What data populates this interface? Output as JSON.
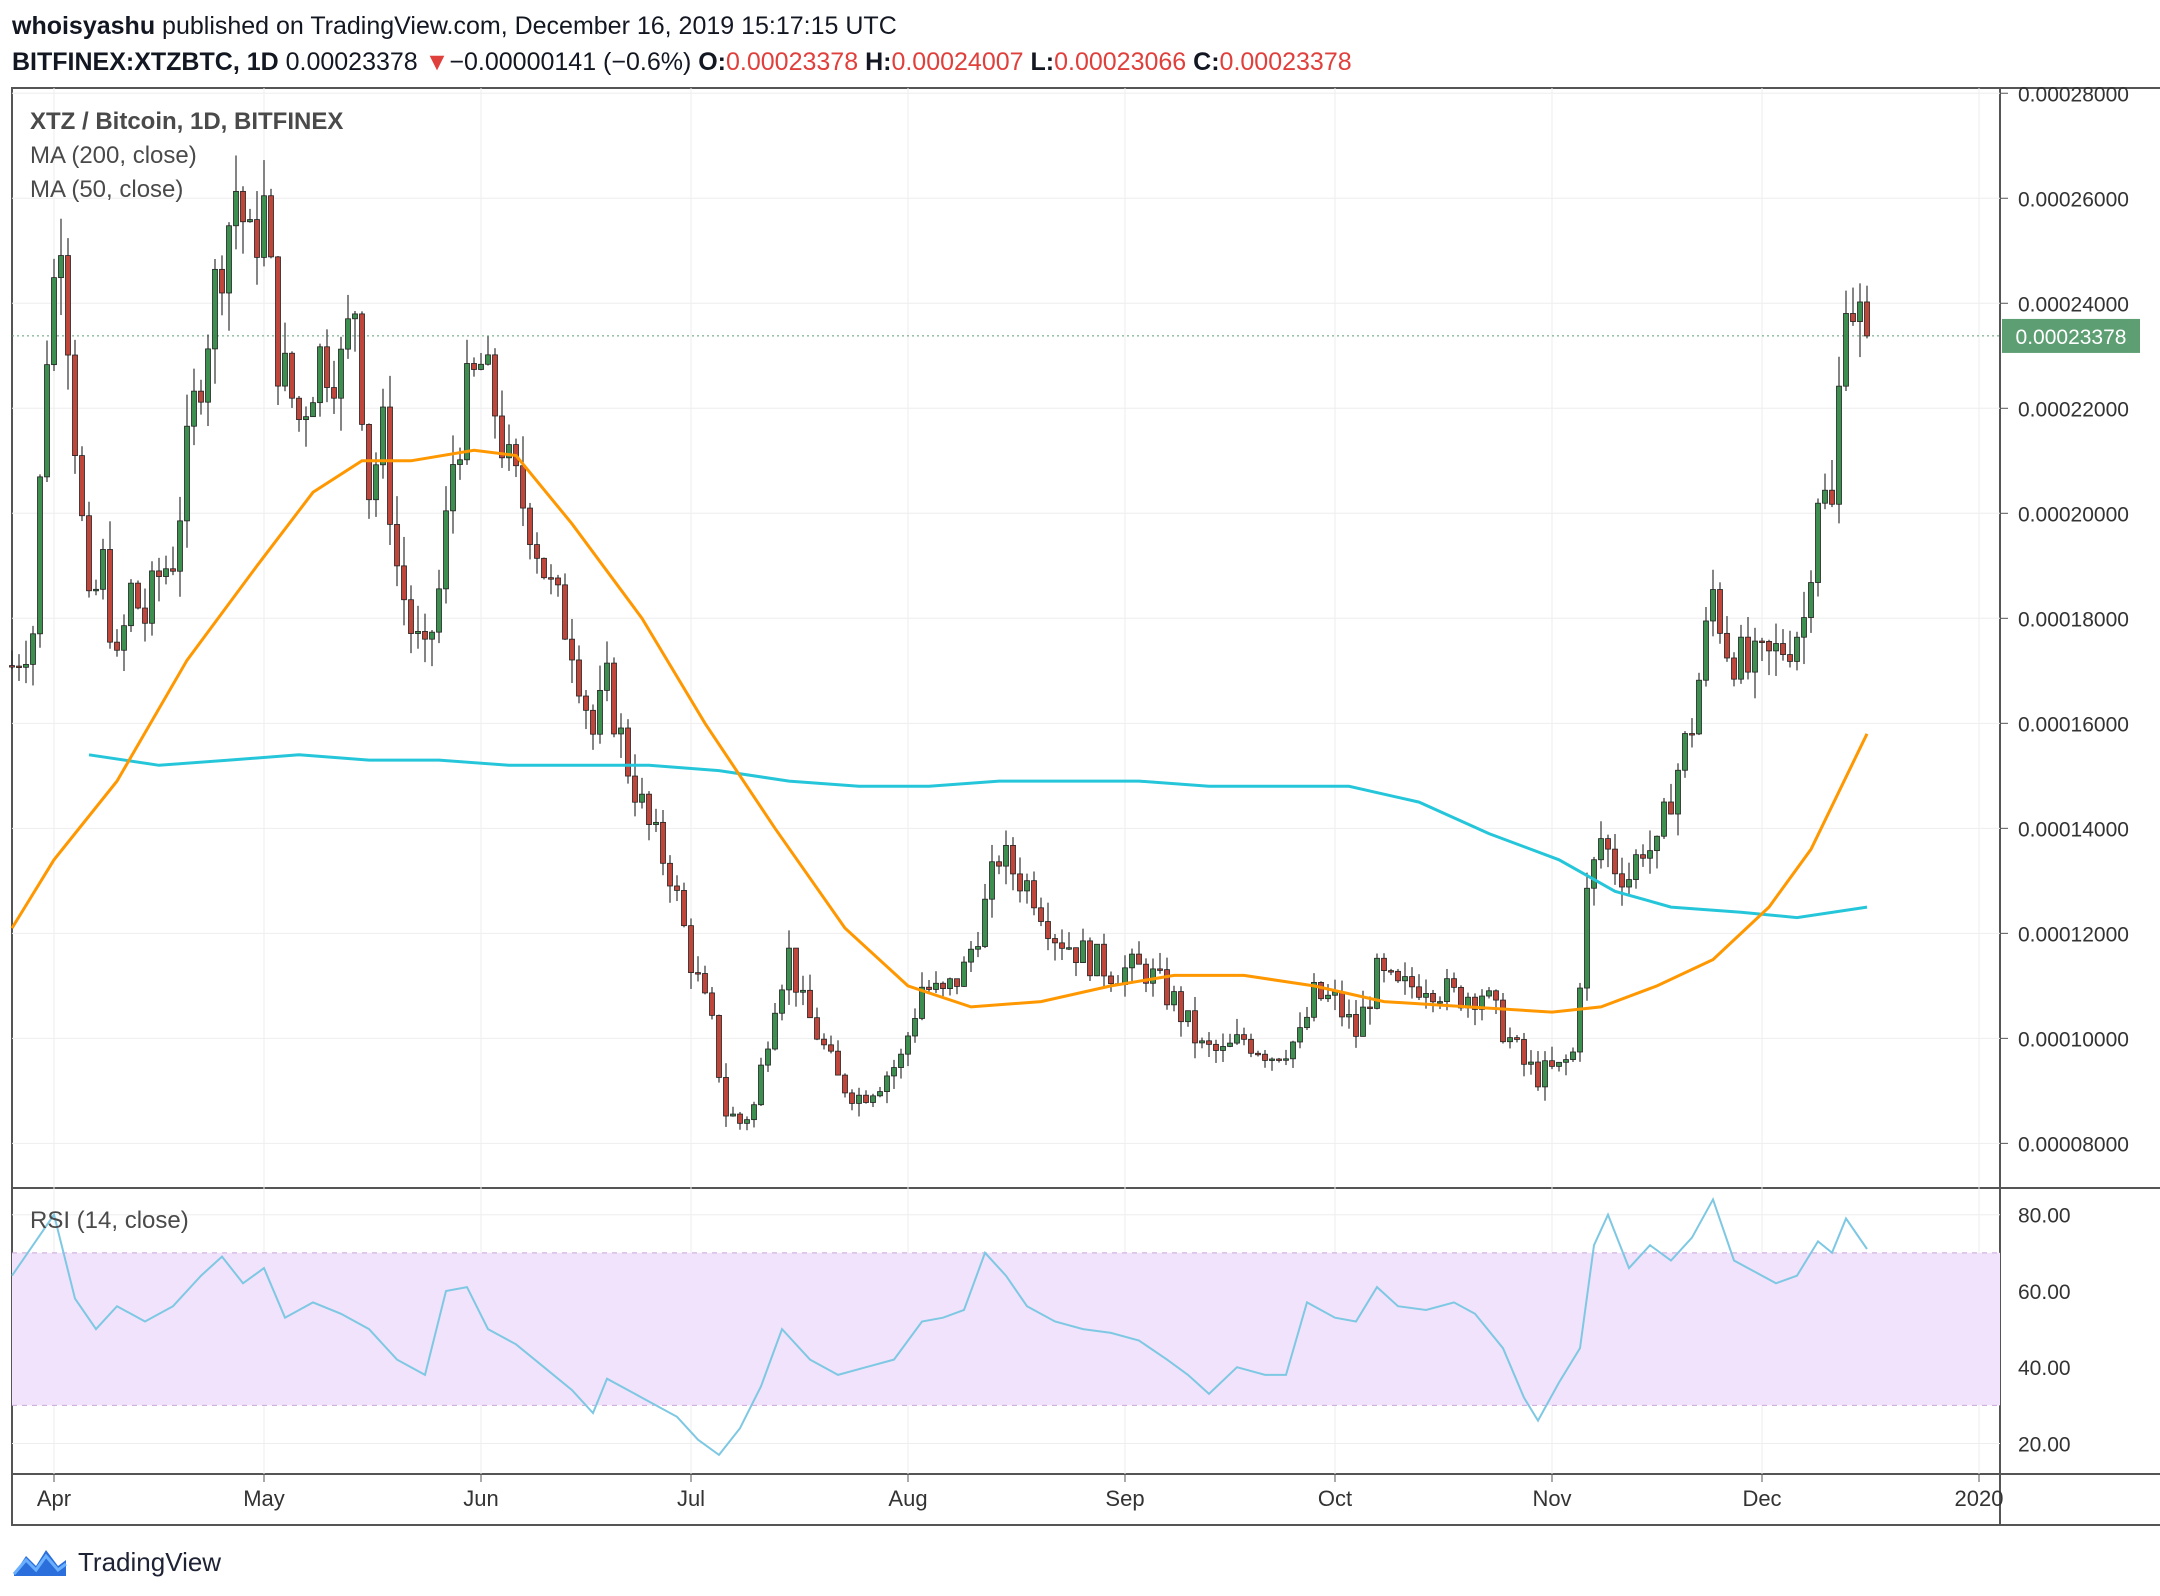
{
  "header": {
    "author": "whoisyashu",
    "published": "published on TradingView.com, December 16, 2019 15:17:15 UTC",
    "symbol": "BITFINEX:XTZBTC, 1D",
    "last": "0.00023378",
    "change_arrow": "▼",
    "change": "−0.00000141 (−0.6%)",
    "o_label": "O:",
    "o": "0.00023378",
    "h_label": "H:",
    "h": "0.00024007",
    "l_label": "L:",
    "l": "0.00023066",
    "c_label": "C:",
    "c": "0.00023378"
  },
  "footer": {
    "brand": "TradingView",
    "icon": "tradingview-logo-icon"
  },
  "colors": {
    "up": "#3d8f4f",
    "down": "#c0463b",
    "ma50": "#ff9800",
    "ma200": "#26c6da",
    "rsi": "#7ec8e3",
    "rsi_band": "#f1e3fb",
    "price_tag": "#5e9e73",
    "grid": "#eeeeee"
  },
  "chart_data": [
    {
      "type": "candlestick",
      "title": "XTZ / Bitcoin, 1D, BITFINEX",
      "legend": [
        "MA (200, close)",
        "MA (50, close)"
      ],
      "x_ticks": [
        "Apr",
        "May",
        "Jun",
        "Jul",
        "Aug",
        "Sep",
        "Oct",
        "Nov",
        "Dec",
        "2020"
      ],
      "y_ticks": [
        "0.00028000",
        "0.00026000",
        "0.00024000",
        "0.00022000",
        "0.00020000",
        "0.00018000",
        "0.00016000",
        "0.00014000",
        "0.00012000",
        "0.00010000",
        "0.00008000"
      ],
      "ylim": [
        7.15e-05,
        0.000281
      ],
      "last_price_label": "0.00023378",
      "last_price": 0.00023378,
      "x_start": "2019-03-26",
      "close_path": [
        [
          "2019-03-26",
          0.000171
        ],
        [
          "2019-03-29",
          0.000178
        ],
        [
          "2019-03-31",
          0.000232
        ],
        [
          "2019-04-02",
          0.000256
        ],
        [
          "2019-04-04",
          0.000215
        ],
        [
          "2019-04-06",
          0.00018
        ],
        [
          "2019-04-08",
          0.00019
        ],
        [
          "2019-04-10",
          0.00017
        ],
        [
          "2019-04-12",
          0.000185
        ],
        [
          "2019-04-14",
          0.00018
        ],
        [
          "2019-04-16",
          0.000188
        ],
        [
          "2019-04-18",
          0.000192
        ],
        [
          "2019-04-21",
          0.00022
        ],
        [
          "2019-04-24",
          0.000243
        ],
        [
          "2019-04-27",
          0.000262
        ],
        [
          "2019-04-29",
          0.00025
        ],
        [
          "2019-05-01",
          0.000258
        ],
        [
          "2019-05-03",
          0.00023
        ],
        [
          "2019-05-06",
          0.000218
        ],
        [
          "2019-05-09",
          0.00023
        ],
        [
          "2019-05-12",
          0.000228
        ],
        [
          "2019-05-14",
          0.00024
        ],
        [
          "2019-05-16",
          0.000205
        ],
        [
          "2019-05-18",
          0.000215
        ],
        [
          "2019-05-20",
          0.00019
        ],
        [
          "2019-05-22",
          0.000178
        ],
        [
          "2019-05-24",
          0.000171
        ],
        [
          "2019-05-26",
          0.000185
        ],
        [
          "2019-05-28",
          0.00021
        ],
        [
          "2019-05-30",
          0.000222
        ],
        [
          "2019-06-01",
          0.000228
        ],
        [
          "2019-06-03",
          0.00022
        ],
        [
          "2019-06-05",
          0.000208
        ],
        [
          "2019-06-08",
          0.000199
        ],
        [
          "2019-06-11",
          0.000185
        ],
        [
          "2019-06-14",
          0.000176
        ],
        [
          "2019-06-17",
          0.000158
        ],
        [
          "2019-06-19",
          0.000167
        ],
        [
          "2019-06-22",
          0.000152
        ],
        [
          "2019-06-25",
          0.00014
        ],
        [
          "2019-06-28",
          0.000132
        ],
        [
          "2019-07-01",
          0.000115
        ],
        [
          "2019-07-04",
          0.000102
        ],
        [
          "2019-07-06",
          8.6e-05
        ],
        [
          "2019-07-08",
          8.4e-05
        ],
        [
          "2019-07-10",
          8.7e-05
        ],
        [
          "2019-07-13",
          0.000108
        ],
        [
          "2019-07-15",
          0.000116
        ],
        [
          "2019-07-17",
          0.000106
        ],
        [
          "2019-07-19",
          0.000101
        ],
        [
          "2019-07-22",
          9.2e-05
        ],
        [
          "2019-07-25",
          8.9e-05
        ],
        [
          "2019-07-28",
          9.2e-05
        ],
        [
          "2019-07-31",
          9.6e-05
        ],
        [
          "2019-08-03",
          0.00011
        ],
        [
          "2019-08-06",
          0.000108
        ],
        [
          "2019-08-09",
          0.000113
        ],
        [
          "2019-08-12",
          0.000125
        ],
        [
          "2019-08-14",
          0.000135
        ],
        [
          "2019-08-16",
          0.000132
        ],
        [
          "2019-08-19",
          0.000128
        ],
        [
          "2019-08-22",
          0.00012
        ],
        [
          "2019-08-26",
          0.000116
        ],
        [
          "2019-08-30",
          0.000113
        ],
        [
          "2019-09-04",
          0.000113
        ],
        [
          "2019-09-08",
          0.000107
        ],
        [
          "2019-09-12",
          9.8e-05
        ],
        [
          "2019-09-15",
          9.7e-05
        ],
        [
          "2019-09-18",
          0.0001
        ],
        [
          "2019-09-22",
          9.7e-05
        ],
        [
          "2019-09-26",
          0.0001
        ],
        [
          "2019-09-28",
          0.000108
        ],
        [
          "2019-10-01",
          0.000107
        ],
        [
          "2019-10-04",
          0.000101
        ],
        [
          "2019-10-07",
          0.000112
        ],
        [
          "2019-10-10",
          0.000109
        ],
        [
          "2019-10-14",
          0.000111
        ],
        [
          "2019-10-18",
          0.000108
        ],
        [
          "2019-10-22",
          0.000109
        ],
        [
          "2019-10-25",
          0.000102
        ],
        [
          "2019-10-28",
          9.5e-05
        ],
        [
          "2019-10-30",
          9.3e-05
        ],
        [
          "2019-11-02",
          9.4e-05
        ],
        [
          "2019-11-04",
          9.7e-05
        ],
        [
          "2019-11-06",
          0.000127
        ],
        [
          "2019-11-08",
          0.000138
        ],
        [
          "2019-11-10",
          0.000133
        ],
        [
          "2019-11-12",
          0.000131
        ],
        [
          "2019-11-14",
          0.000137
        ],
        [
          "2019-11-16",
          0.000135
        ],
        [
          "2019-11-18",
          0.000147
        ],
        [
          "2019-11-21",
          0.00016
        ],
        [
          "2019-11-24",
          0.000185
        ],
        [
          "2019-11-26",
          0.000175
        ],
        [
          "2019-11-29",
          0.00017
        ],
        [
          "2019-12-02",
          0.000172
        ],
        [
          "2019-12-05",
          0.000176
        ],
        [
          "2019-12-07",
          0.00018
        ],
        [
          "2019-12-09",
          0.000205
        ],
        [
          "2019-12-11",
          0.0002
        ],
        [
          "2019-12-13",
          0.000245
        ],
        [
          "2019-12-14",
          0.00024
        ],
        [
          "2019-12-16",
          0.00023378
        ]
      ],
      "ma50": [
        [
          "2019-03-26",
          0.000121
        ],
        [
          "2019-04-01",
          0.000134
        ],
        [
          "2019-04-10",
          0.000149
        ],
        [
          "2019-04-20",
          0.000172
        ],
        [
          "2019-04-30",
          0.00019
        ],
        [
          "2019-05-08",
          0.000204
        ],
        [
          "2019-05-15",
          0.00021
        ],
        [
          "2019-05-22",
          0.00021
        ],
        [
          "2019-05-31",
          0.000212
        ],
        [
          "2019-06-06",
          0.000211
        ],
        [
          "2019-06-14",
          0.000198
        ],
        [
          "2019-06-24",
          0.00018
        ],
        [
          "2019-07-03",
          0.00016
        ],
        [
          "2019-07-13",
          0.00014
        ],
        [
          "2019-07-23",
          0.000121
        ],
        [
          "2019-08-01",
          0.00011
        ],
        [
          "2019-08-10",
          0.000106
        ],
        [
          "2019-08-20",
          0.000107
        ],
        [
          "2019-08-30",
          0.00011
        ],
        [
          "2019-09-08",
          0.000112
        ],
        [
          "2019-09-18",
          0.000112
        ],
        [
          "2019-09-28",
          0.00011
        ],
        [
          "2019-10-08",
          0.000107
        ],
        [
          "2019-10-20",
          0.000106
        ],
        [
          "2019-11-01",
          0.000105
        ],
        [
          "2019-11-08",
          0.000106
        ],
        [
          "2019-11-16",
          0.00011
        ],
        [
          "2019-11-24",
          0.000115
        ],
        [
          "2019-12-02",
          0.000125
        ],
        [
          "2019-12-08",
          0.000136
        ],
        [
          "2019-12-16",
          0.000158
        ]
      ],
      "ma200": [
        [
          "2019-04-06",
          0.000154
        ],
        [
          "2019-04-16",
          0.000152
        ],
        [
          "2019-04-26",
          0.000153
        ],
        [
          "2019-05-06",
          0.000154
        ],
        [
          "2019-05-16",
          0.000153
        ],
        [
          "2019-05-26",
          0.000153
        ],
        [
          "2019-06-05",
          0.000152
        ],
        [
          "2019-06-15",
          0.000152
        ],
        [
          "2019-06-25",
          0.000152
        ],
        [
          "2019-07-05",
          0.000151
        ],
        [
          "2019-07-15",
          0.000149
        ],
        [
          "2019-07-25",
          0.000148
        ],
        [
          "2019-08-04",
          0.000148
        ],
        [
          "2019-08-14",
          0.000149
        ],
        [
          "2019-08-24",
          0.000149
        ],
        [
          "2019-09-03",
          0.000149
        ],
        [
          "2019-09-13",
          0.000148
        ],
        [
          "2019-09-23",
          0.000148
        ],
        [
          "2019-10-03",
          0.000148
        ],
        [
          "2019-10-13",
          0.000145
        ],
        [
          "2019-10-23",
          0.000139
        ],
        [
          "2019-11-02",
          0.000134
        ],
        [
          "2019-11-10",
          0.000128
        ],
        [
          "2019-11-18",
          0.000125
        ],
        [
          "2019-11-28",
          0.000124
        ],
        [
          "2019-12-06",
          0.000123
        ],
        [
          "2019-12-16",
          0.000125
        ]
      ]
    },
    {
      "type": "line",
      "title": "RSI (14, close)",
      "y_ticks": [
        "80.00",
        "60.00",
        "40.00",
        "20.00"
      ],
      "ylim": [
        12.0,
        87.0
      ],
      "band": [
        30,
        70
      ],
      "rsi": [
        [
          "2019-03-26",
          64
        ],
        [
          "2019-03-29",
          72
        ],
        [
          "2019-04-01",
          80
        ],
        [
          "2019-04-04",
          58
        ],
        [
          "2019-04-07",
          50
        ],
        [
          "2019-04-10",
          56
        ],
        [
          "2019-04-14",
          52
        ],
        [
          "2019-04-18",
          56
        ],
        [
          "2019-04-22",
          64
        ],
        [
          "2019-04-25",
          69
        ],
        [
          "2019-04-28",
          62
        ],
        [
          "2019-05-01",
          66
        ],
        [
          "2019-05-04",
          53
        ],
        [
          "2019-05-08",
          57
        ],
        [
          "2019-05-12",
          54
        ],
        [
          "2019-05-16",
          50
        ],
        [
          "2019-05-20",
          42
        ],
        [
          "2019-05-24",
          38
        ],
        [
          "2019-05-27",
          60
        ],
        [
          "2019-05-30",
          61
        ],
        [
          "2019-06-02",
          50
        ],
        [
          "2019-06-06",
          46
        ],
        [
          "2019-06-10",
          40
        ],
        [
          "2019-06-14",
          34
        ],
        [
          "2019-06-17",
          28
        ],
        [
          "2019-06-19",
          37
        ],
        [
          "2019-06-23",
          33
        ],
        [
          "2019-06-26",
          30
        ],
        [
          "2019-06-29",
          27
        ],
        [
          "2019-07-02",
          21
        ],
        [
          "2019-07-05",
          17
        ],
        [
          "2019-07-08",
          24
        ],
        [
          "2019-07-11",
          35
        ],
        [
          "2019-07-14",
          50
        ],
        [
          "2019-07-18",
          42
        ],
        [
          "2019-07-22",
          38
        ],
        [
          "2019-07-26",
          40
        ],
        [
          "2019-07-30",
          42
        ],
        [
          "2019-08-03",
          52
        ],
        [
          "2019-08-06",
          53
        ],
        [
          "2019-08-09",
          55
        ],
        [
          "2019-08-12",
          70
        ],
        [
          "2019-08-15",
          64
        ],
        [
          "2019-08-18",
          56
        ],
        [
          "2019-08-22",
          52
        ],
        [
          "2019-08-26",
          50
        ],
        [
          "2019-08-30",
          49
        ],
        [
          "2019-09-03",
          47
        ],
        [
          "2019-09-07",
          42
        ],
        [
          "2019-09-10",
          38
        ],
        [
          "2019-09-13",
          33
        ],
        [
          "2019-09-17",
          40
        ],
        [
          "2019-09-21",
          38
        ],
        [
          "2019-09-24",
          38
        ],
        [
          "2019-09-27",
          57
        ],
        [
          "2019-10-01",
          53
        ],
        [
          "2019-10-04",
          52
        ],
        [
          "2019-10-07",
          61
        ],
        [
          "2019-10-10",
          56
        ],
        [
          "2019-10-14",
          55
        ],
        [
          "2019-10-18",
          57
        ],
        [
          "2019-10-21",
          54
        ],
        [
          "2019-10-25",
          45
        ],
        [
          "2019-10-28",
          32
        ],
        [
          "2019-10-30",
          26
        ],
        [
          "2019-11-02",
          36
        ],
        [
          "2019-11-05",
          45
        ],
        [
          "2019-11-07",
          72
        ],
        [
          "2019-11-09",
          80
        ],
        [
          "2019-11-12",
          66
        ],
        [
          "2019-11-15",
          72
        ],
        [
          "2019-11-18",
          68
        ],
        [
          "2019-11-21",
          74
        ],
        [
          "2019-11-24",
          84
        ],
        [
          "2019-11-27",
          68
        ],
        [
          "2019-11-30",
          65
        ],
        [
          "2019-12-03",
          62
        ],
        [
          "2019-12-06",
          64
        ],
        [
          "2019-12-09",
          73
        ],
        [
          "2019-12-11",
          70
        ],
        [
          "2019-12-13",
          79
        ],
        [
          "2019-12-16",
          71
        ]
      ]
    }
  ]
}
